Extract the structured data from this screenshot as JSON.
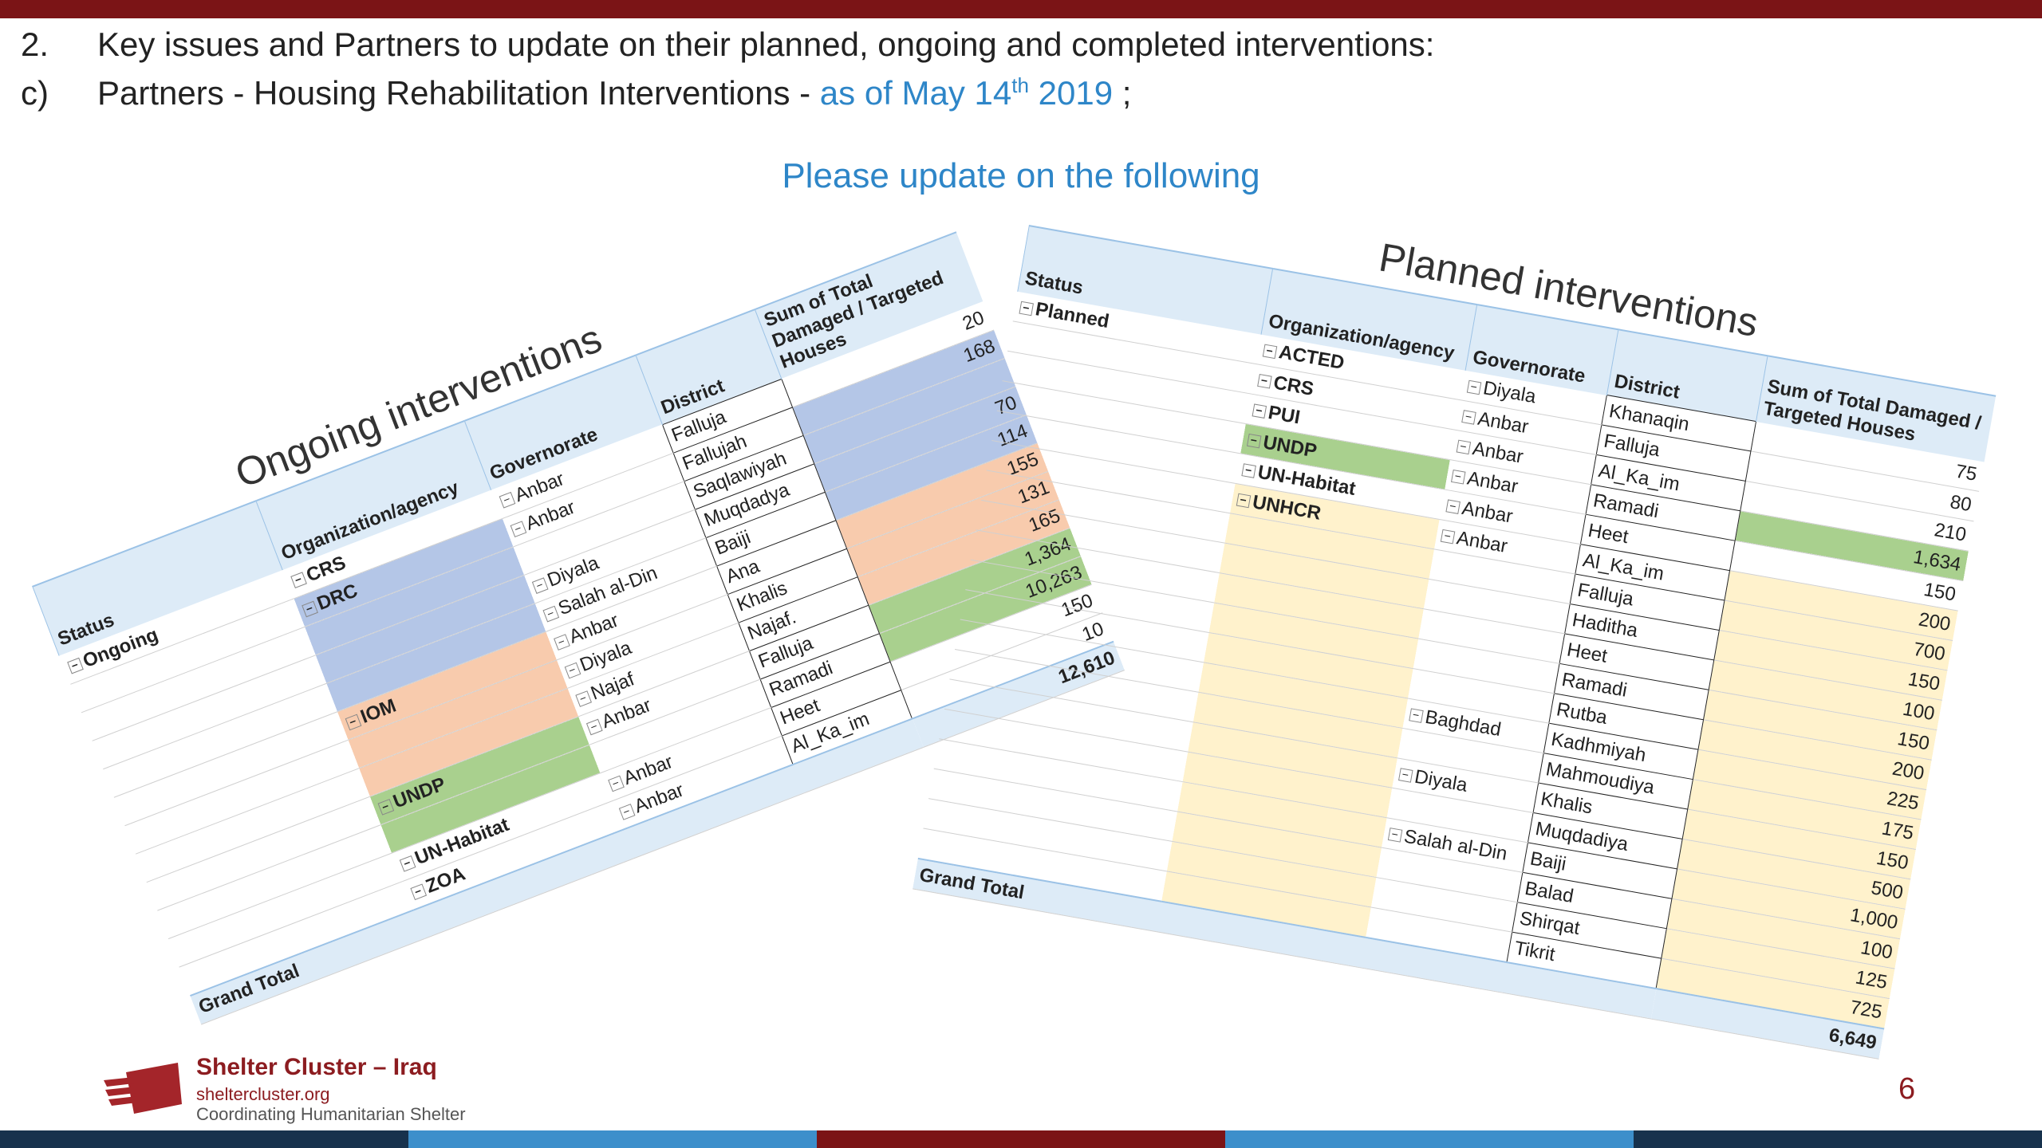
{
  "header": {
    "line1": {
      "number": "2.",
      "text": "Key issues and Partners to update on their planned, ongoing and completed interventions:"
    },
    "line2": {
      "number": "c)",
      "text": "Partners - Housing Rehabilitation Interventions -",
      "date": "as of May 14",
      "superscript": "th",
      "year": "2019",
      "suffix": ";"
    }
  },
  "subtitle": "Please update on the following",
  "ongoing": {
    "title": "Ongoing interventions",
    "columns": [
      "Status",
      "Organization/agency",
      "Governorate",
      "District",
      "Sum of Total Damaged / Targeted Houses"
    ],
    "status": "Ongoing",
    "rows": [
      {
        "org": "CRS",
        "gov": "Anbar",
        "district": "Falluja",
        "value": "20"
      },
      {
        "org": "DRC",
        "gov": "Anbar",
        "district": "Fallujah",
        "value": "168",
        "fill": "#b4c6e7"
      },
      {
        "district": "Saqlawiyah",
        "fill": "#b4c6e7"
      },
      {
        "gov": "Diyala",
        "district": "Muqdadya",
        "value": "70",
        "fill": "#b4c6e7"
      },
      {
        "gov": "Salah al-Din",
        "district": "Baiji",
        "value": "114",
        "fill": "#b4c6e7"
      },
      {
        "org": "IOM",
        "gov": "Anbar",
        "district": "Ana",
        "value": "155",
        "fill": "#f8cbad"
      },
      {
        "gov": "Diyala",
        "district": "Khalis",
        "value": "131",
        "fill": "#f8cbad"
      },
      {
        "gov": "Najaf",
        "district": "Najaf.",
        "value": "165",
        "fill": "#f8cbad"
      },
      {
        "org": "UNDP",
        "gov": "Anbar",
        "district": "Falluja",
        "value": "1,364",
        "fill": "#a9d08e"
      },
      {
        "district": "Ramadi",
        "value": "10,263",
        "fill": "#a9d08e"
      },
      {
        "org": "UN-Habitat",
        "gov": "Anbar",
        "district": "Heet",
        "value": "150"
      },
      {
        "org": "ZOA",
        "gov": "Anbar",
        "district": "Al_Ka_im",
        "value": "10"
      }
    ],
    "total_label": "Grand Total",
    "total": "12,610"
  },
  "planned": {
    "title": "Planned interventions",
    "columns": [
      "Status",
      "Organization/agency",
      "Governorate",
      "District",
      "Sum of Total Damaged / Targeted Houses"
    ],
    "status": "Planned",
    "rows": [
      {
        "org": "ACTED",
        "gov": "Diyala",
        "district": "Khanaqin",
        "value": "75"
      },
      {
        "org": "CRS",
        "gov": "Anbar",
        "district": "Falluja",
        "value": "80"
      },
      {
        "org": "PUI",
        "gov": "Anbar",
        "district": "Al_Ka_im",
        "value": "210"
      },
      {
        "org": "UNDP",
        "gov": "Anbar",
        "district": "Ramadi",
        "value": "1,634",
        "fill": "#a9d08e"
      },
      {
        "org": "UN-Habitat",
        "gov": "Anbar",
        "district": "Heet",
        "value": "150"
      },
      {
        "org": "UNHCR",
        "gov": "Anbar",
        "district": "Al_Ka_im",
        "value": "200",
        "fill": "#fff2cc"
      },
      {
        "district": "Falluja",
        "value": "700",
        "fill": "#fff2cc"
      },
      {
        "district": "Haditha",
        "value": "150",
        "fill": "#fff2cc"
      },
      {
        "district": "Heet",
        "value": "100",
        "fill": "#fff2cc"
      },
      {
        "district": "Ramadi",
        "value": "150",
        "fill": "#fff2cc"
      },
      {
        "district": "Rutba",
        "value": "200",
        "fill": "#fff2cc"
      },
      {
        "gov": "Baghdad",
        "district": "Kadhmiyah",
        "value": "225",
        "fill": "#fff2cc"
      },
      {
        "district": "Mahmoudiya",
        "value": "175",
        "fill": "#fff2cc"
      },
      {
        "gov": "Diyala",
        "district": "Khalis",
        "value": "150",
        "fill": "#fff2cc"
      },
      {
        "district": "Muqdadiya",
        "value": "500",
        "fill": "#fff2cc"
      },
      {
        "gov": "Salah al-Din",
        "district": "Baiji",
        "value": "1,000",
        "fill": "#fff2cc"
      },
      {
        "district": "Balad",
        "value": "100",
        "fill": "#fff2cc"
      },
      {
        "district": "Shirqat",
        "value": "125",
        "fill": "#fff2cc"
      },
      {
        "district": "Tikrit",
        "value": "725",
        "fill": "#fff2cc"
      }
    ],
    "total_label": "Grand Total",
    "total": "6,649"
  },
  "footer": {
    "org": "Shelter Cluster – Iraq",
    "site": "sheltercluster.org",
    "tagline": "Coordinating Humanitarian Shelter",
    "page": "6"
  }
}
